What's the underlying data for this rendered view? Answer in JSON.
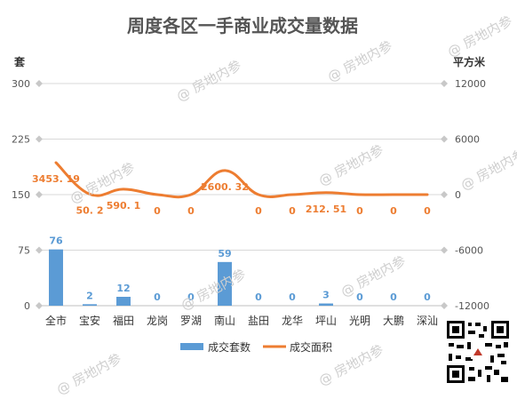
{
  "chart_data": {
    "type": "bar",
    "title": "周度各区一手商业成交量数据",
    "ylabel_left": "套",
    "ylabel_right": "平方米",
    "categories": [
      "全市",
      "宝安",
      "福田",
      "龙岗",
      "罗湖",
      "南山",
      "盐田",
      "龙华",
      "坪山",
      "光明",
      "大鹏",
      "深汕"
    ],
    "left_ticks": [
      "0",
      "75",
      "150",
      "225",
      "300"
    ],
    "right_ticks": [
      "-12000",
      "-6000",
      "0",
      "6000",
      "12000"
    ],
    "ylim_left": [
      0,
      300
    ],
    "ylim_right": [
      -12000,
      12000
    ],
    "grid": true,
    "legend_position": "bottom",
    "series": [
      {
        "name": "成交套数",
        "kind": "bar",
        "axis": "left",
        "color": "#5b9bd5",
        "values": [
          76,
          2,
          12,
          0,
          0,
          59,
          0,
          0,
          3,
          0,
          0,
          0
        ],
        "labels": [
          "76",
          "2",
          "12",
          "0",
          "0",
          "59",
          "0",
          "0",
          "3",
          "0",
          "0",
          "0"
        ]
      },
      {
        "name": "成交面积",
        "kind": "line",
        "axis": "right",
        "color": "#ed7d31",
        "values": [
          3453.19,
          50.2,
          590.1,
          0,
          0,
          2600.32,
          0,
          0,
          212.51,
          0,
          0,
          0
        ],
        "labels": [
          "3453. 19",
          "50. 2",
          "590. 1",
          "0",
          "0",
          "2600. 32",
          "0",
          "0",
          "212. 51",
          "0",
          "0",
          "0"
        ]
      }
    ]
  },
  "watermark": "@ 房地内参"
}
